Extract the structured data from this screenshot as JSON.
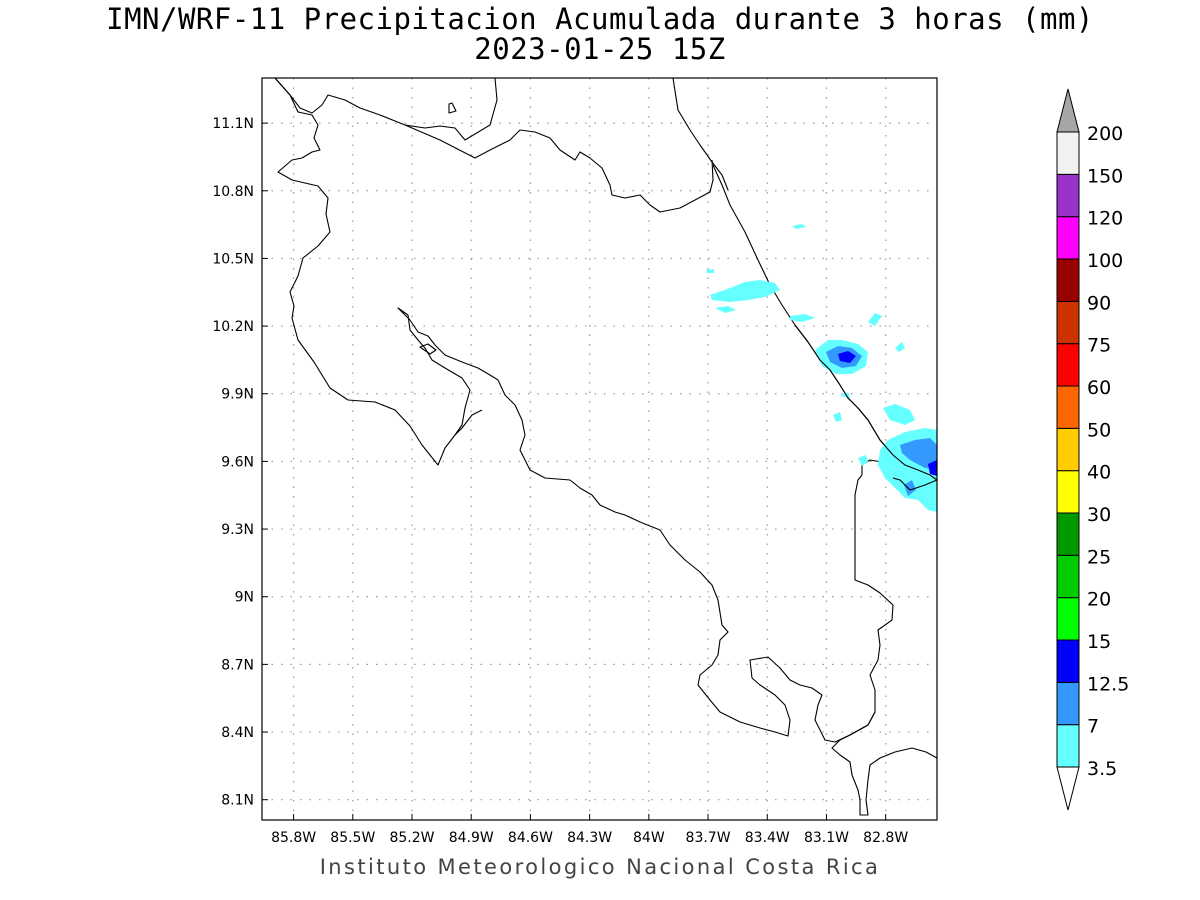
{
  "title_line1": "IMN/WRF-11 Precipitacion Acumulada durante 3 horas (mm)",
  "title_line2": "2023-01-25 15Z",
  "footer": "Instituto Meteorologico Nacional Costa Rica",
  "map": {
    "lon_range": [
      -85.96,
      -82.54
    ],
    "lat_range": [
      8.01,
      11.3
    ],
    "lon_ticks": [
      {
        "value": -85.8,
        "label": "85.8W"
      },
      {
        "value": -85.5,
        "label": "85.5W"
      },
      {
        "value": -85.2,
        "label": "85.2W"
      },
      {
        "value": -84.9,
        "label": "84.9W"
      },
      {
        "value": -84.6,
        "label": "84.6W"
      },
      {
        "value": -84.3,
        "label": "84.3W"
      },
      {
        "value": -84.0,
        "label": "84W"
      },
      {
        "value": -83.7,
        "label": "83.7W"
      },
      {
        "value": -83.4,
        "label": "83.4W"
      },
      {
        "value": -83.1,
        "label": "83.1W"
      },
      {
        "value": -82.8,
        "label": "82.8W"
      }
    ],
    "lat_ticks": [
      {
        "value": 11.1,
        "label": "11.1N"
      },
      {
        "value": 10.8,
        "label": "10.8N"
      },
      {
        "value": 10.5,
        "label": "10.5N"
      },
      {
        "value": 10.2,
        "label": "10.2N"
      },
      {
        "value": 9.9,
        "label": "9.9N"
      },
      {
        "value": 9.6,
        "label": "9.6N"
      },
      {
        "value": 9.3,
        "label": "9.3N"
      },
      {
        "value": 9.0,
        "label": "9N"
      },
      {
        "value": 8.7,
        "label": "8.7N"
      },
      {
        "value": 8.4,
        "label": "8.4N"
      },
      {
        "value": 8.1,
        "label": "8.1N"
      }
    ],
    "grid": "dotted"
  },
  "legend": {
    "levels": [
      "3.5",
      "7",
      "12.5",
      "15",
      "20",
      "25",
      "30",
      "40",
      "50",
      "60",
      "75",
      "90",
      "100",
      "120",
      "150",
      "200"
    ],
    "colors": [
      "#66ffff",
      "#3399ff",
      "#0000ff",
      "#00ff00",
      "#00cc00",
      "#009900",
      "#ffff00",
      "#ffcc00",
      "#ff6600",
      "#ff0000",
      "#cc3300",
      "#990000",
      "#ff00ff",
      "#9933cc",
      "#f2f2f2"
    ],
    "top_arrow_color": "#a6a6a6",
    "bottom_arrow_color": "#ffffff"
  },
  "rain": [
    {
      "level": "3.5",
      "color": "#66ffff"
    },
    {
      "level": "7",
      "color": "#3399ff"
    },
    {
      "level": "12.5",
      "color": "#0000ff"
    }
  ]
}
